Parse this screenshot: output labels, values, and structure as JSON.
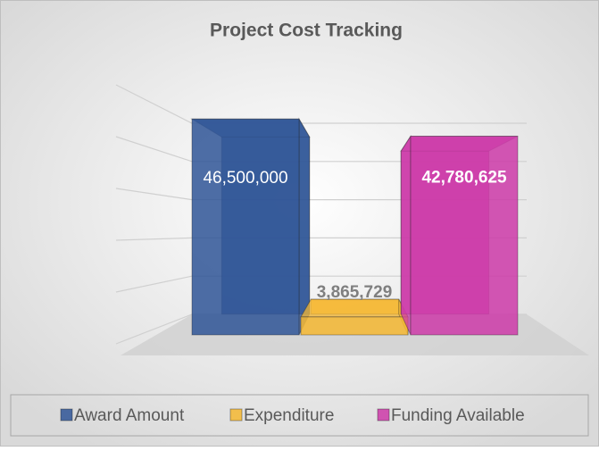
{
  "chart_data": {
    "type": "bar3d",
    "title": "Project Cost Tracking",
    "categories": [
      "Award Amount",
      "Expenditure",
      "Funding Available"
    ],
    "values": [
      46500000,
      3865729,
      42780625
    ],
    "value_labels": [
      "46,500,000",
      "3,865,729",
      "42,780,625"
    ],
    "colors": [
      "#2f5597",
      "#f5b731",
      "#cc3aa8"
    ],
    "ylim": [
      0,
      50000000
    ],
    "yticks": [
      0,
      10000000,
      20000000,
      30000000,
      40000000,
      50000000
    ],
    "grid": true,
    "legend": "bottom"
  }
}
